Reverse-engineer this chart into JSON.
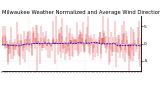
{
  "title": "Milwaukee Weather Normalized and Average Wind Direction (Last 24 Hours)",
  "ylim": [
    -8,
    8
  ],
  "n_points": 288,
  "background_color": "#ffffff",
  "red_color": "#dd0000",
  "blue_color": "#0000cc",
  "grid_color": "#cccccc",
  "title_fontsize": 3.8,
  "tick_fontsize": 3.2,
  "seed": 42,
  "figsize": [
    1.6,
    0.87
  ],
  "dpi": 100,
  "yticks": [
    5,
    0,
    -5
  ],
  "ytick_labels": [
    "5",
    "0",
    "-5"
  ],
  "n_xticks": 48,
  "red_linewidth": 0.25,
  "blue_linewidth": 0.55,
  "signal_scale": 3.2,
  "smooth_window": 50
}
